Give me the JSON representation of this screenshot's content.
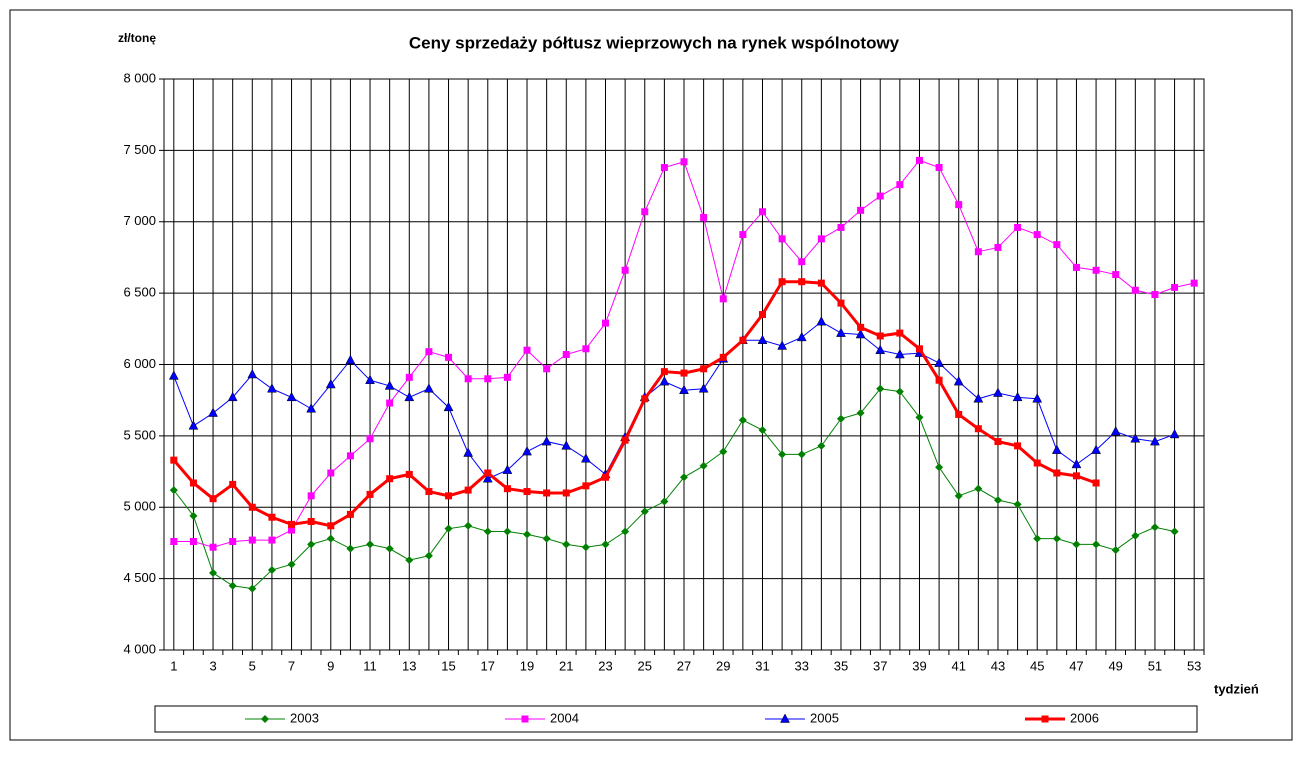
{
  "chart_data": {
    "type": "line",
    "title": "Ceny sprzedaży półtusz wieprzowych na rynek wspólnotowy",
    "y_label": "zł/tonę",
    "x_label": "tydzień",
    "categories": [
      "1",
      null,
      "3",
      null,
      "5",
      null,
      "7",
      null,
      "9",
      null,
      "11",
      null,
      "13",
      null,
      "15",
      null,
      "17",
      null,
      "19",
      null,
      "21",
      null,
      "23",
      null,
      "25",
      null,
      "27",
      null,
      "29",
      null,
      "31",
      null,
      "33",
      null,
      "35",
      null,
      "37",
      null,
      "39",
      null,
      "41",
      null,
      "43",
      null,
      "45",
      null,
      "47",
      null,
      "49",
      null,
      "51",
      null,
      "53"
    ],
    "ylim": [
      4000,
      8000
    ],
    "yticks": [
      {
        "value": 4000,
        "label": "4 000"
      },
      {
        "value": 4500,
        "label": "4 500"
      },
      {
        "value": 5000,
        "label": "5 000"
      },
      {
        "value": 5500,
        "label": "5 500"
      },
      {
        "value": 6000,
        "label": "6 000"
      },
      {
        "value": 6500,
        "label": "6 500"
      },
      {
        "value": 7000,
        "label": "7 000"
      },
      {
        "value": 7500,
        "label": "7 500"
      },
      {
        "value": 8000,
        "label": "8 000"
      }
    ],
    "grid": true,
    "legend": "bottom",
    "series": [
      {
        "name": "2003",
        "color": "#008000",
        "marker": "diamond",
        "width": 1,
        "values": [
          5120,
          4940,
          4540,
          4450,
          4430,
          4560,
          4600,
          4740,
          4780,
          4710,
          4740,
          4710,
          4630,
          4660,
          4850,
          4870,
          4830,
          4830,
          4810,
          4780,
          4740,
          4720,
          4740,
          4830,
          4970,
          5040,
          5210,
          5290,
          5390,
          5610,
          5540,
          5370,
          5370,
          5430,
          5620,
          5660,
          5830,
          5810,
          5630,
          5280,
          5080,
          5130,
          5050,
          5020,
          4780,
          4780,
          4740,
          4740,
          4700,
          4800,
          4860,
          4830,
          null
        ]
      },
      {
        "name": "2004",
        "color": "#ff00ff",
        "marker": "square",
        "width": 1,
        "values": [
          4760,
          4760,
          4720,
          4760,
          4770,
          4770,
          4840,
          5080,
          5240,
          5360,
          5480,
          5730,
          5910,
          6090,
          6050,
          5900,
          5900,
          5910,
          6100,
          5970,
          6070,
          6110,
          6290,
          6660,
          7070,
          7380,
          7420,
          7030,
          6460,
          6910,
          7070,
          6880,
          6720,
          6880,
          6960,
          7080,
          7180,
          7260,
          7430,
          7380,
          7120,
          6790,
          6820,
          6960,
          6910,
          6840,
          6680,
          6660,
          6630,
          6520,
          6490,
          6540,
          6570
        ]
      },
      {
        "name": "2005",
        "color": "#0000ff",
        "marker": "triangle",
        "width": 1,
        "values": [
          5920,
          5570,
          5660,
          5770,
          5930,
          5830,
          5770,
          5690,
          5860,
          6030,
          5890,
          5850,
          5770,
          5830,
          5700,
          5380,
          5200,
          5260,
          5390,
          5460,
          5430,
          5340,
          5230,
          5490,
          5770,
          5880,
          5820,
          5830,
          6040,
          6170,
          6170,
          6130,
          6190,
          6300,
          6220,
          6210,
          6100,
          6070,
          6080,
          6010,
          5880,
          5760,
          5800,
          5770,
          5760,
          5400,
          5300,
          5400,
          5530,
          5480,
          5460,
          5510,
          null
        ]
      },
      {
        "name": "2006",
        "color": "#ff0000",
        "marker": "square",
        "width": 3,
        "values": [
          5330,
          5170,
          5060,
          5160,
          5000,
          4930,
          4880,
          4900,
          4870,
          4950,
          5090,
          5200,
          5230,
          5110,
          5080,
          5120,
          5240,
          5130,
          5110,
          5100,
          5100,
          5150,
          5210,
          5470,
          5760,
          5950,
          5940,
          5970,
          6050,
          6170,
          6350,
          6580,
          6580,
          6570,
          6430,
          6260,
          6200,
          6220,
          6110,
          5890,
          5650,
          5550,
          5460,
          5430,
          5310,
          5240,
          5220,
          5170,
          null,
          null,
          null,
          null,
          null
        ]
      }
    ]
  }
}
